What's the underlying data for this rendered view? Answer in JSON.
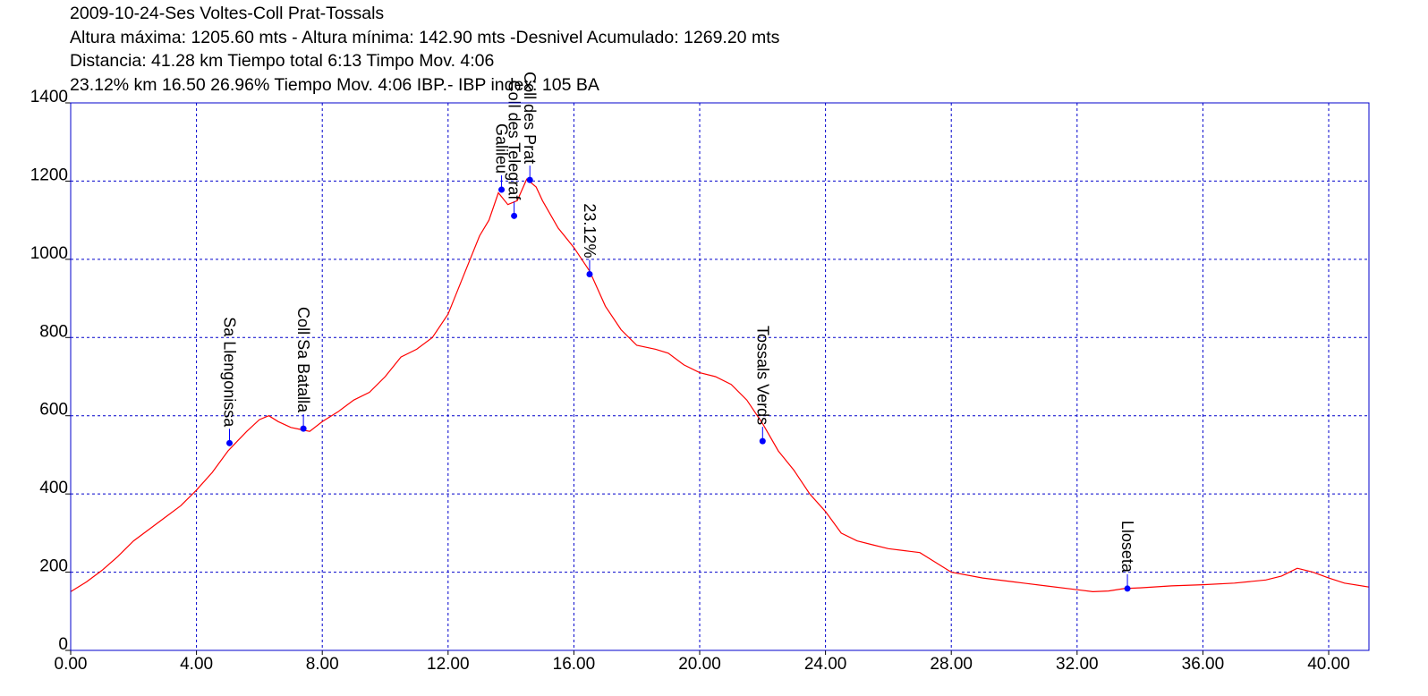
{
  "header": {
    "title": "2009-10-24-Ses Voltes-Coll Prat-Tossals",
    "line2": "Altura máxima: 1205.60 mts - Altura mínima: 142.90 mts -Desnivel Acumulado: 1269.20 mts",
    "line3": "Distancia: 41.28 km  Tiempo total 6:13 Timpo Mov. 4:06",
    "line4": "23.12% km 16.50  26.96%  Tiempo Mov. 4:06 IBP.- IBP index: 105 BA"
  },
  "colors": {
    "profile": "#ff0000",
    "grid": "#0000cc",
    "frame": "#0000cc",
    "marker": "#0000ff",
    "text": "#000000"
  },
  "chart_data": {
    "type": "line",
    "title": "2009-10-24-Ses Voltes-Coll Prat-Tossals",
    "xlabel": "",
    "ylabel": "",
    "xlim": [
      0,
      41.28
    ],
    "ylim": [
      0,
      1400
    ],
    "grid": true,
    "x_ticks": [
      0,
      4,
      8,
      12,
      16,
      20,
      24,
      28,
      32,
      36,
      40
    ],
    "x_tick_labels": [
      "0.00",
      "4.00",
      "8.00",
      "12.00",
      "16.00",
      "20.00",
      "24.00",
      "28.00",
      "32.00",
      "36.00",
      "40.00"
    ],
    "y_ticks": [
      0,
      200,
      400,
      600,
      800,
      1000,
      1200,
      1400
    ],
    "y_tick_labels": [
      "0",
      "200",
      "400",
      "600",
      "800",
      "1000",
      "1200",
      "1400"
    ],
    "series": [
      {
        "x": [
          0,
          0.5,
          1,
          1.5,
          2,
          2.5,
          3,
          3.5,
          4,
          4.5,
          5,
          5.3,
          5.6,
          6,
          6.3,
          6.6,
          7,
          7.3,
          7.6,
          8,
          8.5,
          9,
          9.5,
          10,
          10.5,
          11,
          11.5,
          12,
          12.5,
          13,
          13.3,
          13.6,
          13.9,
          14.2,
          14.5,
          14.8,
          15,
          15.5,
          16,
          16.5,
          17,
          17.5,
          18,
          18.6,
          19,
          19.5,
          20,
          20.5,
          21,
          21.5,
          22,
          22.5,
          23,
          23.5,
          24,
          24.5,
          25,
          25.5,
          26,
          26.5,
          27,
          27.5,
          28,
          29,
          30,
          31,
          32,
          32.5,
          33,
          33.5,
          34,
          35,
          36,
          37,
          38,
          38.5,
          39,
          39.5,
          40,
          40.5,
          41.28
        ],
        "y": [
          150,
          175,
          205,
          240,
          280,
          310,
          340,
          370,
          410,
          455,
          510,
          535,
          560,
          590,
          600,
          585,
          570,
          565,
          560,
          585,
          610,
          640,
          660,
          700,
          750,
          770,
          800,
          860,
          960,
          1060,
          1100,
          1170,
          1140,
          1150,
          1205,
          1185,
          1150,
          1080,
          1030,
          970,
          880,
          820,
          780,
          770,
          760,
          730,
          710,
          700,
          680,
          640,
          580,
          510,
          460,
          400,
          355,
          300,
          280,
          270,
          260,
          255,
          250,
          225,
          200,
          185,
          175,
          165,
          155,
          150,
          152,
          158,
          160,
          165,
          168,
          172,
          180,
          190,
          210,
          200,
          185,
          172,
          162
        ]
      }
    ],
    "annotations": [
      {
        "label": "Sa Llengonissa",
        "x": 5.05,
        "y": 530
      },
      {
        "label": "Coll Sa Batalla",
        "x": 7.4,
        "y": 567
      },
      {
        "label": "Galileu",
        "x": 13.7,
        "y": 1178
      },
      {
        "label": "Coll des Telegraf",
        "x": 14.1,
        "y": 1111
      },
      {
        "label": "Coll des Prat",
        "x": 14.6,
        "y": 1203
      },
      {
        "label": "23.12%",
        "x": 16.5,
        "y": 962
      },
      {
        "label": "Tossals Verds",
        "x": 22.0,
        "y": 535
      },
      {
        "label": "Lloseta",
        "x": 33.6,
        "y": 158
      }
    ]
  }
}
